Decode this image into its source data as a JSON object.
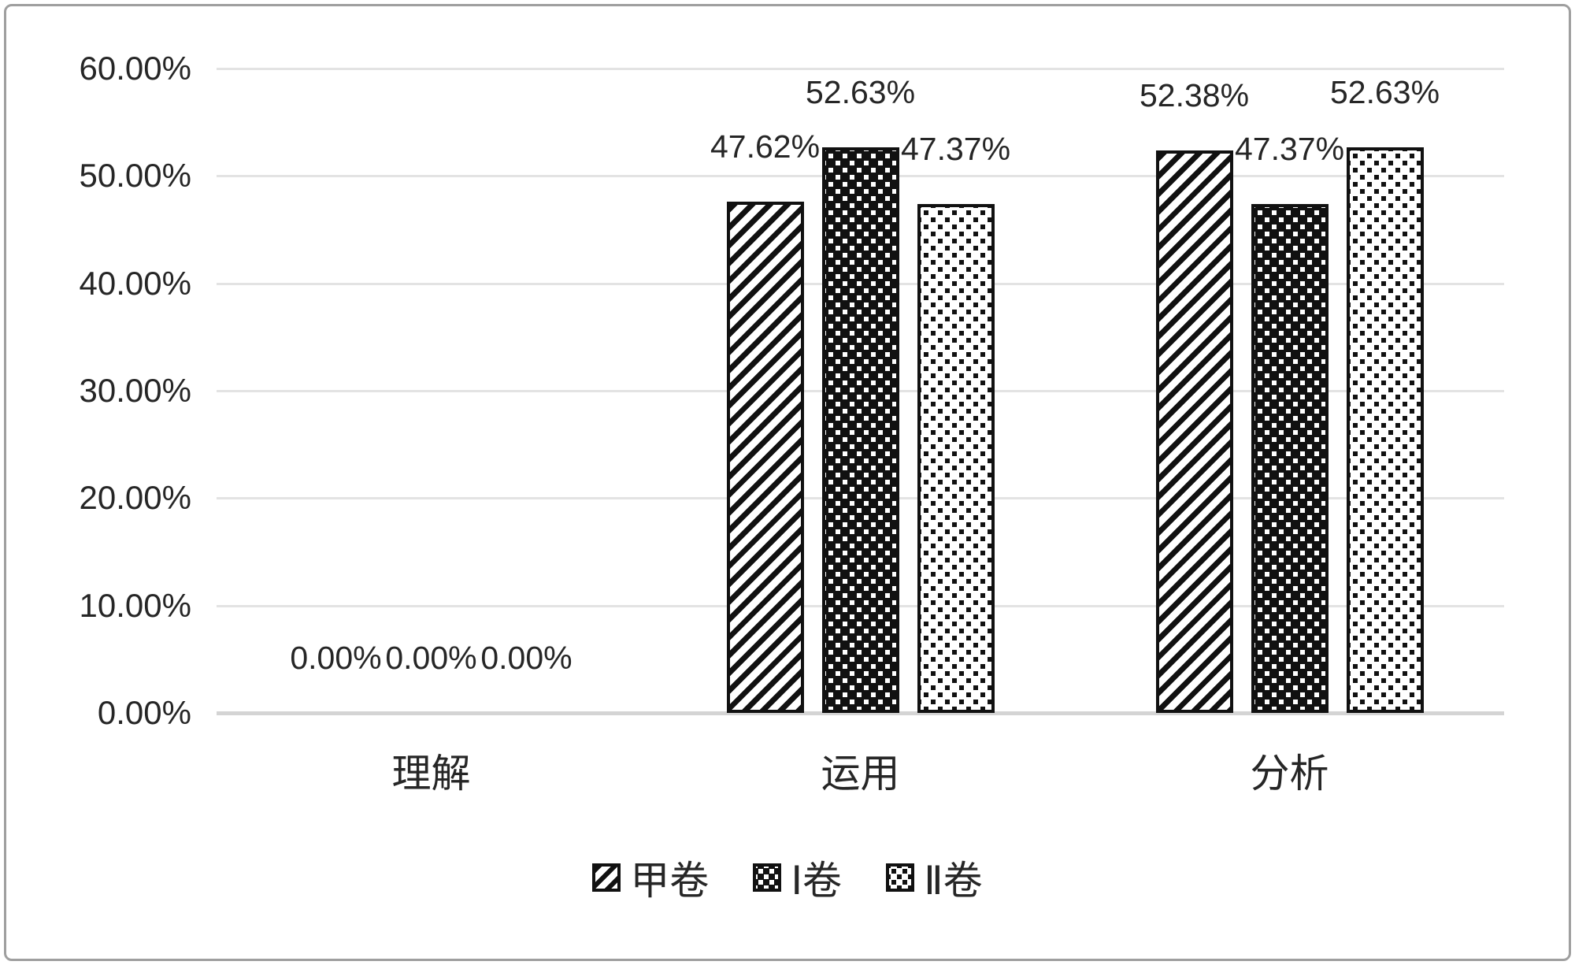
{
  "chart_data": {
    "type": "bar",
    "categories": [
      "理解",
      "运用",
      "分析"
    ],
    "series": [
      {
        "name": "甲卷",
        "pattern": "diagonal-stripes",
        "values": [
          0,
          47.62,
          52.38
        ],
        "labels": [
          "0.00%",
          "47.62%",
          "52.38%"
        ]
      },
      {
        "name": "Ⅰ卷",
        "pattern": "black-with-white-dots",
        "values": [
          0,
          52.63,
          47.37
        ],
        "labels": [
          "0.00%",
          "52.63%",
          "47.37%"
        ]
      },
      {
        "name": "Ⅱ卷",
        "pattern": "white-with-black-dots",
        "values": [
          0,
          47.37,
          52.63
        ],
        "labels": [
          "0.00%",
          "47.37%",
          "52.63%"
        ]
      }
    ],
    "title": "",
    "xlabel": "",
    "ylabel": "",
    "ylim": [
      0,
      60
    ],
    "ytick_step": 10,
    "ytick_labels": [
      "0.00%",
      "10.00%",
      "20.00%",
      "30.00%",
      "40.00%",
      "50.00%",
      "60.00%"
    ],
    "grid": true,
    "legend_position": "bottom",
    "colors": {
      "ink": "#111111",
      "text": "#262626",
      "gridline": "#e3e3e3",
      "axis_line": "#d4d4d4",
      "background": "#ffffff",
      "frame_border": "#9f9f9f"
    }
  }
}
